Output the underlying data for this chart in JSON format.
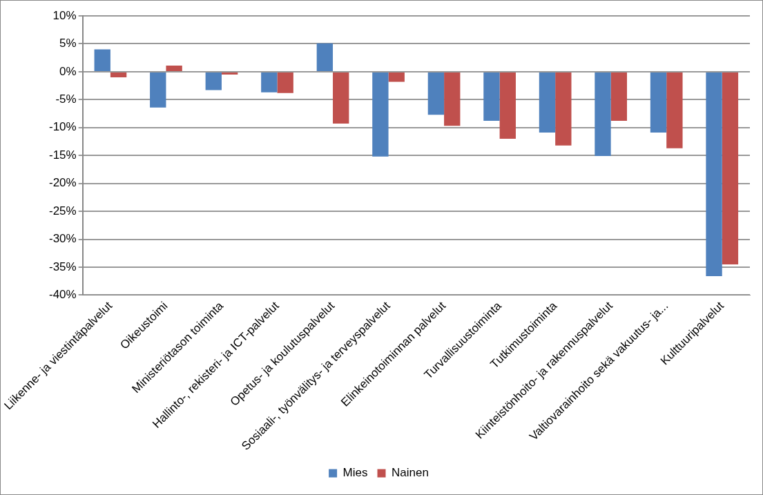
{
  "chart_data": {
    "type": "bar",
    "categories": [
      "Liikenne- ja viestintäpalvelut",
      "Oikeustoimi",
      "Ministeriötason toiminta",
      "Hallinto-, rekisteri- ja ICT-palvelut",
      "Opetus- ja koulutuspalvelut",
      "Sosiaali-, työnvälitys- ja terveyspalvelut",
      "Elinkeinotoiminnan palvelut",
      "Turvallisuustoiminta",
      "Tutkimustoiminta",
      "Kiinteistönhoito- ja rakennuspalvelut",
      "Valtiovarainhoito sekä vakuutus- ja...",
      "Kulttuuripalvelut"
    ],
    "series": [
      {
        "name": "Mies",
        "color": "#4f81bd",
        "values": [
          4.0,
          -6.4,
          -3.3,
          -3.7,
          5.1,
          -15.2,
          -7.7,
          -8.8,
          -10.9,
          -15.1,
          -10.9,
          -36.6
        ]
      },
      {
        "name": "Nainen",
        "color": "#c0504d",
        "values": [
          -1.0,
          1.1,
          -0.5,
          -3.8,
          -9.3,
          -1.8,
          -9.7,
          -12.0,
          -13.2,
          -8.8,
          -13.7,
          -34.5
        ]
      }
    ],
    "ylim": [
      -40,
      10
    ],
    "yticks": [
      {
        "value": -40,
        "label": "-40%"
      },
      {
        "value": -35,
        "label": "-35%"
      },
      {
        "value": -30,
        "label": "-30%"
      },
      {
        "value": -25,
        "label": "-25%"
      },
      {
        "value": -20,
        "label": "-20%"
      },
      {
        "value": -15,
        "label": "-15%"
      },
      {
        "value": -10,
        "label": "-10%"
      },
      {
        "value": -5,
        "label": "-5%"
      },
      {
        "value": 0,
        "label": "0%"
      },
      {
        "value": 5,
        "label": "5%"
      },
      {
        "value": 10,
        "label": "10%"
      }
    ],
    "grid": "y",
    "legend": "bottom"
  }
}
